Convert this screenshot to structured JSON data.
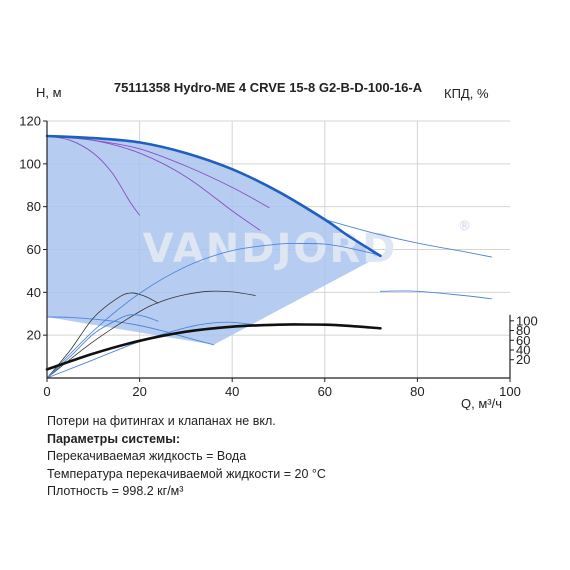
{
  "chart_data": {
    "type": "line",
    "title": "75111358 Hydro-ME 4 CRVE 15-8 G2-B-D-100-16-A",
    "watermark": "VANDJORD",
    "watermark_symbol": "®",
    "xlabel": "Q, м³/ч",
    "ylabel": "H, м",
    "ylabel_right": "КПД, %",
    "xlim": [
      0,
      100
    ],
    "ylim": [
      0,
      120
    ],
    "x_ticks": [
      "0",
      "20",
      "40",
      "60",
      "80",
      "100"
    ],
    "y_ticks": [
      "0",
      "20",
      "40",
      "60",
      "80",
      "100",
      "120"
    ],
    "efficiency_ticks": [
      "20",
      "40",
      "60",
      "80",
      "100"
    ],
    "efficiency_scale": {
      "zero_at_head": 4,
      "head_per_percent": 0.227
    },
    "grid": true,
    "colors": {
      "area_fill": "#a9c3ee",
      "qh_max": "#1f5fbf",
      "efficiency": "#111111",
      "thin_curves": "#4f86d9",
      "purple_curves": "#8a4fc2",
      "watermark": "#dfe6f3"
    },
    "operating_area": [
      [
        0,
        113
      ],
      [
        10,
        112
      ],
      [
        20,
        110
      ],
      [
        30,
        105
      ],
      [
        40,
        97.5
      ],
      [
        50,
        87
      ],
      [
        60,
        74
      ],
      [
        65,
        66.5
      ],
      [
        72,
        57
      ],
      [
        36,
        15.5
      ],
      [
        0,
        28.5
      ]
    ],
    "series": [
      {
        "role": "qh-max",
        "style": "thick-blue",
        "x": [
          0,
          10,
          20,
          30,
          40,
          50,
          60,
          65,
          72
        ],
        "y": [
          113,
          112,
          110,
          105,
          97.5,
          87,
          74,
          66.5,
          57
        ]
      },
      {
        "role": "efficiency",
        "style": "thick-black",
        "scale": "efficiency",
        "x": [
          0,
          10,
          20,
          30,
          40,
          50,
          55,
          60,
          65,
          72
        ],
        "y": [
          0,
          32.6,
          58.9,
          77.6,
          87.9,
          92,
          92.5,
          92,
          89.8,
          84.6
        ]
      },
      {
        "role": "qh-min",
        "style": "thin-blue",
        "x": [
          0,
          5,
          10,
          15,
          20,
          25,
          30,
          36
        ],
        "y": [
          28.5,
          28.3,
          27.5,
          26.3,
          24.5,
          22,
          19,
          15.5
        ]
      },
      {
        "role": "qh-extension",
        "style": "thin-blue",
        "x": [
          60,
          70,
          80,
          90,
          96
        ],
        "y": [
          74,
          68,
          63,
          59,
          56.5
        ]
      },
      {
        "role": "efficiency-extension",
        "style": "thin-blue",
        "x": [
          72,
          80,
          90,
          96
        ],
        "y": [
          40.5,
          40.5,
          38.5,
          37
        ]
      },
      {
        "role": "efficiency-partial-1",
        "style": "thin-dark",
        "x": [
          0,
          5,
          10,
          15,
          18,
          21,
          24
        ],
        "y": [
          0,
          13,
          28,
          37,
          39.7,
          38.3,
          35
        ]
      },
      {
        "role": "efficiency-partial-2",
        "style": "thin-dark",
        "x": [
          0,
          10,
          20,
          25,
          30,
          35,
          40,
          45
        ],
        "y": [
          0,
          17,
          31,
          36,
          39,
          40.5,
          40.2,
          38.5
        ]
      },
      {
        "role": "efficiency-low-1",
        "style": "thin-blue",
        "x": [
          0,
          5,
          10,
          15,
          18,
          21,
          24
        ],
        "y": [
          0,
          10,
          20.5,
          27,
          29.5,
          28.8,
          26.5
        ]
      },
      {
        "role": "efficiency-low-2",
        "style": "thin-blue",
        "x": [
          0,
          10,
          20,
          30,
          35,
          40,
          46
        ],
        "y": [
          0,
          8.5,
          17,
          23.5,
          25.5,
          26,
          24.5
        ]
      },
      {
        "role": "efficiency-mid",
        "style": "thin-blue",
        "x": [
          0,
          10,
          20,
          30,
          40,
          50,
          55,
          60,
          65,
          72
        ],
        "y": [
          0,
          22,
          39.5,
          52,
          59.5,
          62.5,
          62.8,
          62.5,
          60.8,
          57.3
        ]
      },
      {
        "role": "qh-partial-1",
        "style": "thin-purple",
        "x": [
          0,
          5,
          10,
          14,
          18,
          20
        ],
        "y": [
          113,
          111,
          105,
          96,
          82,
          76
        ]
      },
      {
        "role": "qh-partial-2",
        "style": "thin-purple",
        "x": [
          0,
          10,
          20,
          30,
          40,
          46
        ],
        "y": [
          113,
          111,
          105,
          94,
          78,
          69
        ]
      },
      {
        "role": "qh-partial-3",
        "style": "thin-purple",
        "x": [
          0,
          10,
          20,
          30,
          40,
          48
        ],
        "y": [
          113,
          111,
          107,
          99,
          89,
          79.5
        ]
      }
    ]
  },
  "notes": {
    "line1": "Потери на фитингах и клапанах не вкл.",
    "heading": "Параметры системы:",
    "fluid": "Перекачиваемая жидкость = Вода",
    "temperature": "Температура перекачиваемой жидкости = 20 °C",
    "density": "Плотность = 998.2 кг/м³"
  }
}
